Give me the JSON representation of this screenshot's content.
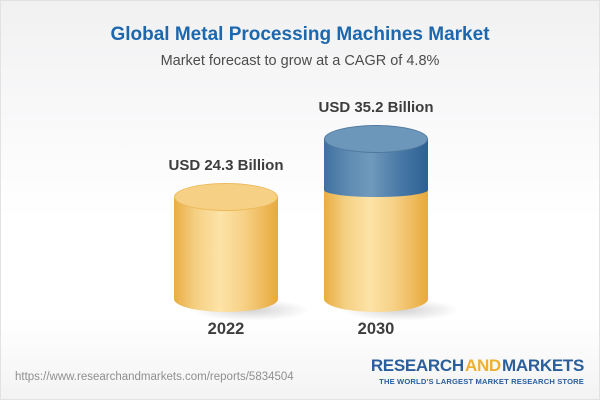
{
  "header": {
    "title": "Global Metal Processing Machines Market",
    "subtitle": "Market forecast to grow at a CAGR of 4.8%"
  },
  "chart_data": {
    "type": "bar",
    "variant": "3d-cylinder-infographic",
    "title": "Global Metal Processing Machines Market",
    "subtitle": "Market forecast to grow at a CAGR of 4.8%",
    "cagr": "4.8%",
    "categories": [
      "2022",
      "2030"
    ],
    "values": [
      24.3,
      35.2
    ],
    "unit": "USD Billion",
    "value_labels": [
      "USD 24.3 Billion",
      "USD 35.2 Billion"
    ],
    "series": [
      {
        "name": "base",
        "color": "#f3c96f",
        "values": [
          24.3,
          24.3
        ]
      },
      {
        "name": "growth",
        "color": "#4c7ca8",
        "values": [
          0,
          10.9
        ]
      }
    ],
    "xlabel": "",
    "ylabel": "",
    "axes": "none",
    "grid": false,
    "legend_position": "none"
  },
  "footer": {
    "url": "https://www.researchandmarkets.com/reports/5834504",
    "logo": {
      "word1": "RESEARCH",
      "word2": "AND",
      "word3": "MARKETS",
      "tagline": "THE WORLD'S LARGEST MARKET RESEARCH STORE"
    }
  }
}
